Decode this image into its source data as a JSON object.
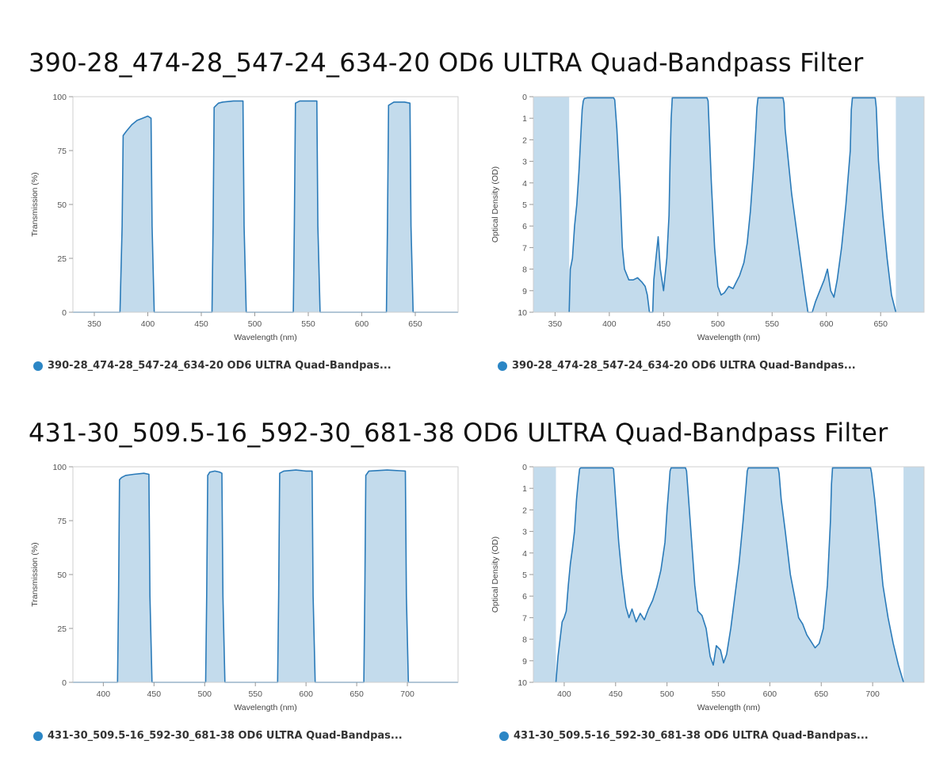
{
  "sections": [
    {
      "title": "390-28_474-28_547-24_634-20 OD6 ULTRA Quad-Bandpass Filter"
    },
    {
      "title": "431-30_509.5-16_592-30_681-38 OD6 ULTRA Quad-Bandpass Filter"
    }
  ],
  "colors": {
    "line": "#2b7bb9",
    "fill": "#c3dbec",
    "legend_dot": "#2b86c5"
  },
  "chart_data": [
    {
      "type": "area",
      "legend": "390-28_474-28_547-24_634-20 OD6 ULTRA Quad-Bandpas...",
      "xlabel": "Wavelength (nm)",
      "ylabel": "Transmission (%)",
      "xlim": [
        330,
        690
      ],
      "ylim": [
        0,
        100
      ],
      "xticks": [
        350,
        400,
        450,
        500,
        550,
        600,
        650
      ],
      "yticks": [
        0,
        25,
        50,
        75,
        100
      ],
      "grid": false,
      "series": [
        {
          "x": [
            330,
            374,
            376,
            377,
            380,
            385,
            390,
            395,
            400,
            403,
            404,
            406,
            460,
            461,
            462,
            466,
            470,
            480,
            489,
            490,
            492,
            536,
            537,
            538,
            542,
            550,
            558,
            559,
            561,
            623,
            624,
            625,
            630,
            640,
            645,
            646,
            648,
            690
          ],
          "y": [
            0,
            0,
            40,
            82,
            84,
            87,
            89,
            90,
            91,
            90,
            40,
            0,
            0,
            40,
            95,
            97,
            97.5,
            98,
            98,
            40,
            0,
            0,
            40,
            97,
            98,
            98,
            98,
            40,
            0,
            0,
            40,
            96,
            97.5,
            97.5,
            97,
            40,
            0,
            0
          ]
        }
      ]
    },
    {
      "type": "area",
      "legend": "390-28_474-28_547-24_634-20 OD6 ULTRA Quad-Bandpas...",
      "xlabel": "Wavelength (nm)",
      "ylabel": "Optical Density (OD)",
      "xlim": [
        330,
        690
      ],
      "ylim": [
        0,
        10
      ],
      "y_inverted": true,
      "xticks": [
        350,
        400,
        450,
        500,
        550,
        600,
        650
      ],
      "yticks": [
        0,
        1,
        2,
        3,
        4,
        5,
        6,
        7,
        8,
        9,
        10
      ],
      "grid": false,
      "series": [
        {
          "x": [
            363,
            364,
            366,
            368,
            370,
            372,
            374,
            375,
            376,
            377,
            380,
            404,
            405,
            407,
            410,
            412,
            414,
            418,
            422,
            426,
            430,
            433,
            435,
            437,
            439,
            440,
            441,
            443,
            445,
            447,
            450,
            453,
            455,
            456,
            457,
            458,
            490,
            491,
            492,
            494,
            497,
            500,
            503,
            506,
            510,
            514,
            517,
            520,
            524,
            527,
            530,
            533,
            535,
            536,
            537,
            560,
            561,
            562,
            565,
            568,
            572,
            576,
            580,
            583,
            585,
            587,
            590,
            594,
            598,
            601,
            604,
            607,
            610,
            614,
            618,
            622,
            623,
            624,
            645,
            646,
            648,
            652,
            656,
            660,
            664
          ],
          "y": [
            10,
            8,
            7.5,
            6,
            5,
            3.5,
            1.5,
            0.6,
            0.2,
            0.08,
            0.05,
            0.05,
            0.15,
            1.5,
            4.5,
            7,
            8,
            8.5,
            8.5,
            8.4,
            8.6,
            8.8,
            9.2,
            10,
            10,
            10,
            8.5,
            7.5,
            6.5,
            8,
            9,
            7.5,
            5.5,
            3,
            1,
            0.05,
            0.05,
            0.2,
            1.5,
            4,
            7,
            8.8,
            9.2,
            9.1,
            8.8,
            8.9,
            8.6,
            8.3,
            7.7,
            6.8,
            5.3,
            3.2,
            1.5,
            0.5,
            0.05,
            0.05,
            0.3,
            1.5,
            3,
            4.5,
            6,
            7.5,
            9,
            10,
            10,
            10,
            9.5,
            9,
            8.5,
            8,
            9,
            9.3,
            8.5,
            7,
            5,
            2.5,
            0.6,
            0.05,
            0.05,
            0.5,
            3,
            5.5,
            7.5,
            9.2,
            10
          ]
        }
      ]
    },
    {
      "type": "area",
      "legend": "431-30_509.5-16_592-30_681-38 OD6 ULTRA Quad-Bandpas...",
      "xlabel": "Wavelength (nm)",
      "ylabel": "Transmission (%)",
      "xlim": [
        370,
        750
      ],
      "ylim": [
        0,
        100
      ],
      "xticks": [
        400,
        450,
        500,
        550,
        600,
        650,
        700
      ],
      "yticks": [
        0,
        25,
        50,
        75,
        100
      ],
      "grid": false,
      "series": [
        {
          "x": [
            370,
            414,
            415,
            416,
            418,
            422,
            430,
            440,
            445,
            446,
            448,
            501,
            502,
            503,
            505,
            510,
            515,
            517,
            518,
            520,
            572,
            573,
            574,
            578,
            590,
            600,
            606,
            607,
            609,
            657,
            658,
            659,
            662,
            680,
            698,
            699,
            701,
            750
          ],
          "y": [
            0,
            0,
            40,
            94,
            95,
            96,
            96.5,
            97,
            96.5,
            40,
            0,
            0,
            40,
            96,
            97.5,
            98,
            97.5,
            97,
            40,
            0,
            0,
            40,
            97,
            98,
            98.5,
            98,
            98,
            40,
            0,
            0,
            40,
            96,
            98,
            98.5,
            98,
            40,
            0,
            0
          ]
        }
      ]
    },
    {
      "type": "area",
      "legend": "431-30_509.5-16_592-30_681-38 OD6 ULTRA Quad-Bandpas...",
      "xlabel": "Wavelength (nm)",
      "ylabel": "Optical Density (OD)",
      "xlim": [
        370,
        750
      ],
      "ylim": [
        0,
        10
      ],
      "y_inverted": true,
      "xticks": [
        400,
        450,
        500,
        550,
        600,
        650,
        700
      ],
      "yticks": [
        0,
        1,
        2,
        3,
        4,
        5,
        6,
        7,
        8,
        9,
        10
      ],
      "grid": false,
      "series": [
        {
          "x": [
            392,
            394,
            396,
            398,
            400,
            402,
            404,
            406,
            408,
            410,
            412,
            414,
            415,
            416,
            447,
            448,
            450,
            453,
            456,
            460,
            463,
            466,
            470,
            474,
            478,
            482,
            486,
            490,
            494,
            498,
            500,
            502,
            503,
            504,
            518,
            519,
            521,
            524,
            527,
            530,
            534,
            538,
            542,
            545,
            548,
            552,
            555,
            558,
            562,
            566,
            570,
            574,
            577,
            578,
            579,
            608,
            609,
            611,
            615,
            620,
            624,
            628,
            632,
            636,
            640,
            644,
            648,
            652,
            656,
            659,
            660,
            661,
            698,
            699,
            702,
            706,
            710,
            715,
            720,
            725,
            730
          ],
          "y": [
            10,
            8.8,
            8,
            7.2,
            7,
            6.7,
            5.5,
            4.5,
            3.8,
            3,
            1.5,
            0.5,
            0.1,
            0.05,
            0.05,
            0.1,
            1.5,
            3.5,
            5,
            6.5,
            7,
            6.6,
            7.2,
            6.8,
            7.1,
            6.6,
            6.2,
            5.6,
            4.8,
            3.5,
            2,
            0.8,
            0.2,
            0.05,
            0.05,
            0.2,
            1.5,
            3.5,
            5.5,
            6.7,
            6.9,
            7.5,
            8.8,
            9.2,
            8.3,
            8.5,
            9.1,
            8.7,
            7.5,
            6,
            4.5,
            2.5,
            0.8,
            0.2,
            0.05,
            0.05,
            0.3,
            1.5,
            3,
            5,
            6,
            7,
            7.3,
            7.8,
            8.1,
            8.4,
            8.2,
            7.5,
            5.5,
            2.5,
            0.8,
            0.05,
            0.05,
            0.3,
            1.5,
            3.5,
            5.5,
            7,
            8.2,
            9.2,
            10
          ]
        }
      ]
    }
  ]
}
